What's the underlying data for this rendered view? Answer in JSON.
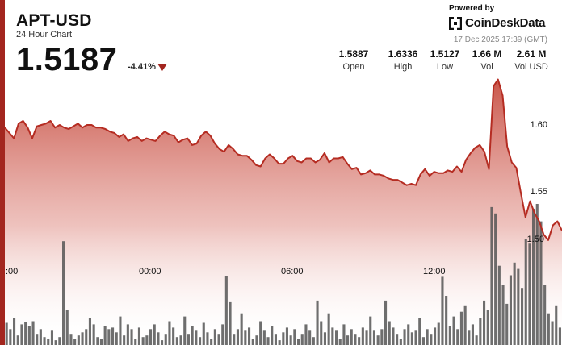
{
  "header": {
    "pair": "APT-USD",
    "subtitle": "24 Hour Chart",
    "price": "1.5187",
    "change": "-4.41%",
    "change_direction": "down"
  },
  "branding": {
    "powered_by": "Powered by",
    "name": "CoinDeskData",
    "logo_icon": "coindesk-bracket-logo"
  },
  "timestamp": "17 Dec 2025 17:39 (GMT)",
  "stats": [
    {
      "value": "1.5887",
      "label": "Open"
    },
    {
      "value": "1.6336",
      "label": "High"
    },
    {
      "value": "1.5127",
      "label": "Low"
    },
    {
      "value": "1.66 M",
      "label": "Vol"
    },
    {
      "value": "2.61 M",
      "label": "Vol USD"
    }
  ],
  "colors": {
    "accent": "#a3261f",
    "line": "#b52c22",
    "area_top": "#c0392b",
    "volume_bar": "#555555"
  },
  "chart_data": {
    "type": "area",
    "x_tick_labels": [
      ":00",
      "00:00",
      "06:00",
      "12:00"
    ],
    "y_tick_labels": [
      "1.60",
      "1.55",
      "1.50"
    ],
    "ylim": [
      1.505,
      1.655
    ],
    "x_range_hours": [
      -6.2,
      18.2
    ],
    "price_series": {
      "x": [
        -6.2,
        -6.0,
        -5.8,
        -5.6,
        -5.4,
        -5.2,
        -5.0,
        -4.8,
        -4.6,
        -4.4,
        -4.2,
        -4.0,
        -3.8,
        -3.6,
        -3.4,
        -3.2,
        -3.0,
        -2.8,
        -2.6,
        -2.4,
        -2.2,
        -2.0,
        -1.8,
        -1.6,
        -1.4,
        -1.2,
        -1.0,
        -0.8,
        -0.6,
        -0.4,
        -0.2,
        0.0,
        0.2,
        0.4,
        0.6,
        0.8,
        1.0,
        1.2,
        1.4,
        1.6,
        1.8,
        2.0,
        2.2,
        2.4,
        2.6,
        2.8,
        3.0,
        3.2,
        3.4,
        3.6,
        3.8,
        4.0,
        4.2,
        4.4,
        4.6,
        4.8,
        5.0,
        5.2,
        5.4,
        5.6,
        5.8,
        6.0,
        6.2,
        6.4,
        6.6,
        6.8,
        7.0,
        7.2,
        7.4,
        7.6,
        7.8,
        8.0,
        8.2,
        8.4,
        8.6,
        8.8,
        9.0,
        9.2,
        9.4,
        9.6,
        9.8,
        10.0,
        10.2,
        10.4,
        10.6,
        10.8,
        11.0,
        11.2,
        11.4,
        11.6,
        11.8,
        12.0,
        12.2,
        12.4,
        12.6,
        12.8,
        13.0,
        13.2,
        13.4,
        13.6,
        13.8,
        14.0,
        14.2,
        14.4,
        14.6,
        14.8,
        15.0,
        15.2,
        15.4,
        15.6,
        15.8,
        16.0,
        16.2,
        16.4,
        16.6,
        16.8,
        17.0,
        17.2,
        17.4,
        17.6,
        17.8,
        18.0,
        18.2
      ],
      "y": [
        1.598,
        1.594,
        1.59,
        1.601,
        1.603,
        1.598,
        1.59,
        1.599,
        1.6,
        1.601,
        1.603,
        1.598,
        1.6,
        1.598,
        1.597,
        1.599,
        1.601,
        1.598,
        1.6,
        1.6,
        1.598,
        1.598,
        1.597,
        1.595,
        1.594,
        1.591,
        1.593,
        1.588,
        1.59,
        1.591,
        1.588,
        1.59,
        1.589,
        1.588,
        1.592,
        1.595,
        1.593,
        1.592,
        1.587,
        1.589,
        1.59,
        1.585,
        1.586,
        1.592,
        1.595,
        1.592,
        1.586,
        1.582,
        1.58,
        1.585,
        1.582,
        1.578,
        1.577,
        1.577,
        1.574,
        1.57,
        1.569,
        1.575,
        1.578,
        1.575,
        1.571,
        1.571,
        1.575,
        1.577,
        1.573,
        1.572,
        1.575,
        1.575,
        1.572,
        1.574,
        1.579,
        1.572,
        1.575,
        1.575,
        1.576,
        1.571,
        1.567,
        1.568,
        1.563,
        1.564,
        1.566,
        1.563,
        1.563,
        1.562,
        1.56,
        1.559,
        1.559,
        1.557,
        1.555,
        1.556,
        1.555,
        1.563,
        1.567,
        1.562,
        1.565,
        1.564,
        1.564,
        1.566,
        1.565,
        1.569,
        1.565,
        1.574,
        1.579,
        1.583,
        1.585,
        1.58,
        1.567,
        1.629,
        1.634,
        1.622,
        1.584,
        1.572,
        1.568,
        1.549,
        1.531,
        1.543,
        1.534,
        1.528,
        1.518,
        1.514,
        1.525,
        1.528,
        1.521
      ]
    },
    "volume_series": {
      "values": [
        28,
        20,
        34,
        12,
        26,
        29,
        24,
        30,
        14,
        20,
        10,
        8,
        18,
        6,
        10,
        131,
        44,
        14,
        8,
        12,
        16,
        20,
        34,
        26,
        10,
        8,
        24,
        20,
        22,
        16,
        36,
        12,
        26,
        20,
        8,
        22,
        10,
        12,
        20,
        26,
        16,
        6,
        14,
        30,
        22,
        10,
        12,
        36,
        14,
        24,
        18,
        10,
        28,
        16,
        8,
        20,
        14,
        26,
        87,
        54,
        14,
        20,
        40,
        18,
        22,
        8,
        12,
        30,
        18,
        10,
        24,
        14,
        6,
        16,
        22,
        12,
        20,
        8,
        14,
        26,
        18,
        10,
        56,
        30,
        16,
        40,
        22,
        18,
        8,
        26,
        12,
        20,
        14,
        10,
        22,
        18,
        36,
        18,
        12,
        20,
        56,
        30,
        22,
        14,
        8,
        20,
        26,
        16,
        18,
        34,
        10,
        20,
        14,
        22,
        28,
        86,
        62,
        24,
        36,
        20,
        42,
        50,
        18,
        26,
        12,
        34,
        56,
        44,
        174,
        166,
        100,
        76,
        52,
        88,
        104,
        96,
        72,
        134,
        128,
        172,
        178,
        156,
        76,
        40,
        30,
        50,
        22
      ]
    }
  }
}
